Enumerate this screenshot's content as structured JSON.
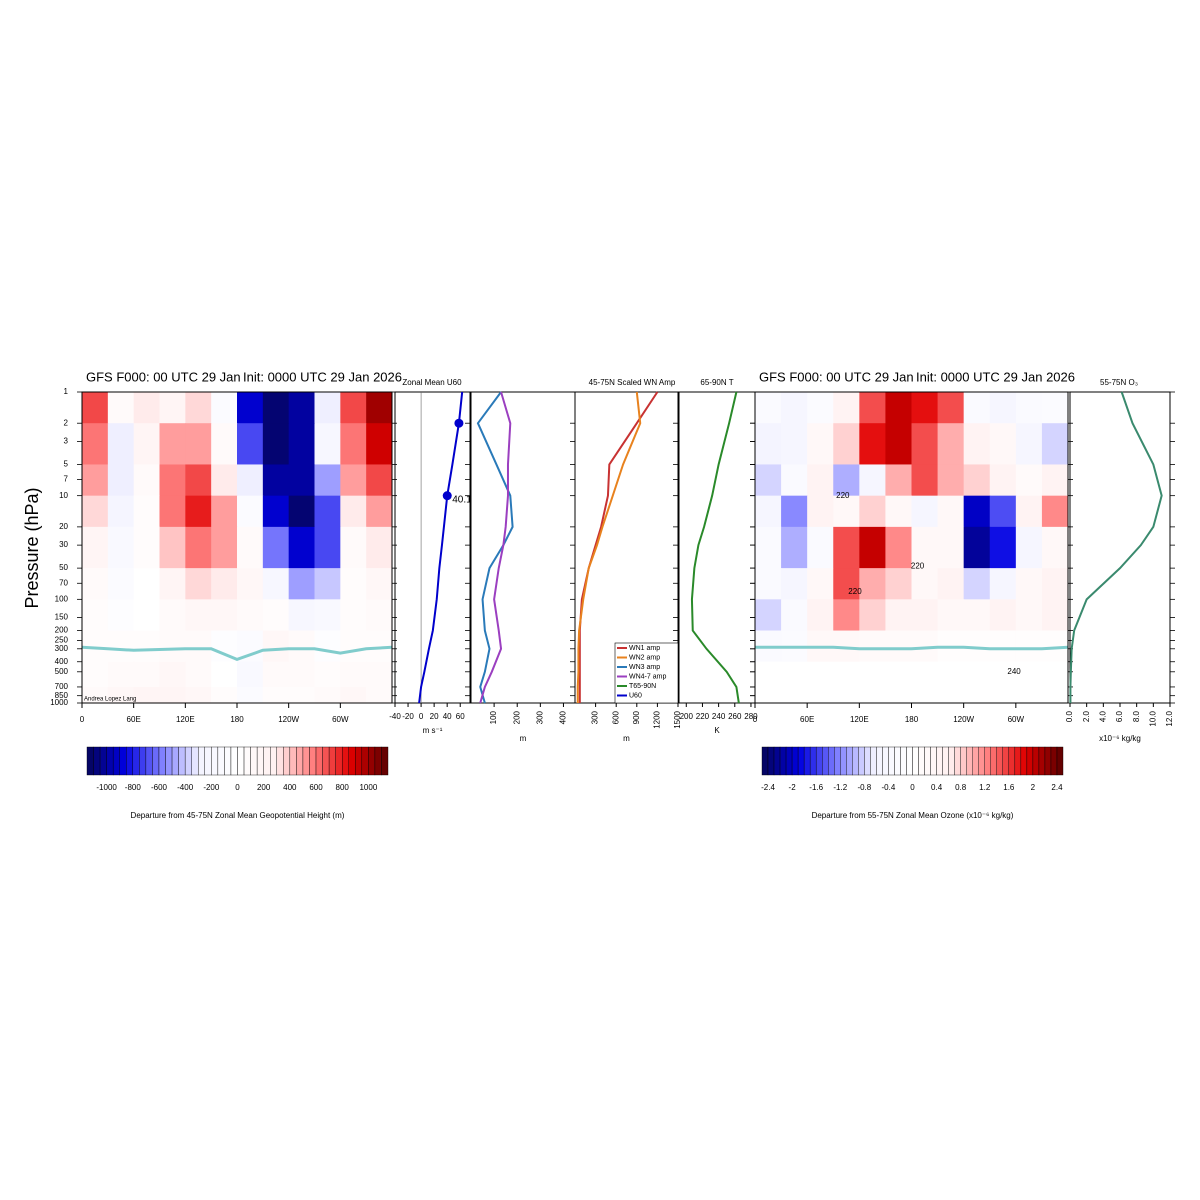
{
  "chart_data": [
    {
      "type": "heatmap",
      "title": "GFS F000: 00 UTC 29 Jan",
      "subtitle": "Init: 0000 UTC 29 Jan 2026",
      "ylabel": "Pressure (hPa)",
      "credit": "Andrea Lopez Lang",
      "x_bins": [
        0,
        30,
        60,
        90,
        120,
        150,
        180,
        210,
        240,
        270,
        300,
        330,
        360
      ],
      "y_bins": [
        1,
        2,
        5,
        10,
        20,
        50,
        100,
        200,
        400,
        700,
        1000
      ],
      "values": [
        [
          700,
          100,
          300,
          200,
          350,
          -100,
          -900,
          -1100,
          -1000,
          -300,
          700,
          1000
        ],
        [
          600,
          -300,
          200,
          500,
          500,
          100,
          -700,
          -1100,
          -1000,
          -200,
          600,
          900
        ],
        [
          500,
          -300,
          100,
          600,
          700,
          300,
          -300,
          -1000,
          -1000,
          -500,
          500,
          700
        ],
        [
          350,
          -250,
          50,
          600,
          800,
          500,
          -100,
          -900,
          -1100,
          -700,
          300,
          500
        ],
        [
          200,
          -150,
          50,
          400,
          600,
          500,
          100,
          -600,
          -900,
          -700,
          100,
          300
        ],
        [
          100,
          -100,
          0,
          200,
          350,
          300,
          150,
          -200,
          -500,
          -400,
          50,
          150
        ],
        [
          50,
          -50,
          0,
          100,
          150,
          150,
          100,
          50,
          -200,
          -150,
          50,
          100
        ],
        [
          50,
          50,
          50,
          100,
          100,
          -50,
          -100,
          150,
          100,
          -50,
          50,
          50
        ],
        [
          50,
          100,
          100,
          150,
          100,
          0,
          -150,
          100,
          100,
          50,
          100,
          100
        ],
        [
          100,
          150,
          200,
          200,
          150,
          50,
          -100,
          50,
          50,
          100,
          150,
          100
        ]
      ],
      "xlim": [
        0,
        360
      ],
      "ylim": [
        1,
        1000
      ],
      "ylog": true,
      "xticks": [
        0,
        {
          "value": 60,
          "label": "60E"
        },
        {
          "value": 120,
          "label": "120E"
        },
        180,
        {
          "value": 240,
          "label": "120W"
        },
        {
          "value": 300,
          "label": "60W"
        }
      ],
      "yticks": [
        1,
        2,
        3,
        5,
        7,
        10,
        20,
        30,
        50,
        70,
        100,
        150,
        200,
        250,
        300,
        400,
        500,
        700,
        850,
        1000
      ],
      "tropopause": {
        "x": [
          0,
          30,
          60,
          90,
          120,
          150,
          180,
          210,
          240,
          270,
          300,
          330,
          360
        ],
        "values": [
          290,
          300,
          310,
          305,
          300,
          300,
          380,
          310,
          300,
          300,
          330,
          300,
          290
        ],
        "color": "#80cccc"
      },
      "colorbar": {
        "label": "Departure from 45-75N Zonal Mean Geopotential Height (m)",
        "clim": [
          -1150,
          1150
        ],
        "step": 50,
        "ticks": [
          -1000,
          -800,
          -600,
          -400,
          -200,
          0,
          200,
          400,
          600,
          800,
          1000
        ],
        "colormap": [
          "#05055a",
          "#0000e0",
          "#8080ff",
          "#f4f4ff",
          "#ffffff",
          "#fff0f0",
          "#ff8080",
          "#e00000",
          "#5a0000"
        ]
      }
    },
    {
      "type": "line",
      "title": "Zonal Mean U60",
      "xlabel": "m s⁻¹",
      "xlim": [
        -40,
        75
      ],
      "xticks": [
        -40,
        -20,
        0,
        20,
        40,
        60
      ],
      "zero_line": true,
      "y": [
        1,
        2,
        5,
        10,
        20,
        30,
        50,
        100,
        200,
        300,
        500,
        700,
        1000
      ],
      "series": [
        {
          "name": "U60",
          "color": "#0000cc",
          "values": [
            63,
            58,
            48,
            40.1,
            35,
            32,
            28,
            24,
            18,
            12,
            5,
            0,
            -3
          ]
        }
      ],
      "markers": {
        "y": [
          2,
          10
        ],
        "values": [
          58,
          40.1
        ],
        "labeled": [
          false,
          true
        ]
      }
    },
    {
      "type": "line",
      "xlabel": "m",
      "xlim": [
        0,
        450
      ],
      "xticks": [
        100,
        200,
        300,
        400
      ],
      "rotate_xticks": true,
      "y": [
        1,
        2,
        5,
        10,
        20,
        30,
        50,
        100,
        200,
        300,
        500,
        700,
        1000
      ],
      "series": [
        {
          "name": "WN3 amp",
          "color": "#2a7ab9",
          "values": [
            130,
            30,
            110,
            170,
            180,
            140,
            80,
            50,
            60,
            80,
            60,
            40,
            60
          ]
        },
        {
          "name": "WN4-7 amp",
          "color": "#9b3fc0",
          "values": [
            130,
            170,
            160,
            160,
            150,
            140,
            120,
            100,
            120,
            130,
            90,
            60,
            40
          ]
        }
      ]
    },
    {
      "type": "line",
      "title": "45-75N Scaled WN Amp",
      "xlabel": "m",
      "xlim": [
        0,
        1500
      ],
      "xticks": [
        300,
        600,
        900,
        1200,
        1500
      ],
      "rotate_xticks": true,
      "legend": "lower right",
      "y": [
        1,
        2,
        5,
        10,
        20,
        30,
        50,
        100,
        200,
        300,
        500,
        700,
        1000
      ],
      "series": [
        {
          "name": "WN1 amp",
          "color": "#c83232",
          "values": [
            1200,
            900,
            500,
            480,
            380,
            300,
            200,
            100,
            70,
            70,
            70,
            70,
            70
          ]
        },
        {
          "name": "WN2 amp",
          "color": "#e8821e",
          "values": [
            900,
            950,
            700,
            550,
            400,
            320,
            200,
            120,
            60,
            50,
            50,
            40,
            40
          ]
        }
      ]
    },
    {
      "type": "line",
      "title": "65-90N T",
      "xlabel": "K",
      "xlim": [
        191,
        285
      ],
      "xticks": [
        200,
        220,
        240,
        260,
        280
      ],
      "y": [
        1,
        2,
        5,
        10,
        20,
        30,
        50,
        100,
        200,
        300,
        500,
        700,
        1000
      ],
      "series": [
        {
          "name": "T65-90N",
          "color": "#2a8a2a",
          "values": [
            262,
            253,
            240,
            232,
            222,
            215,
            210,
            207,
            208,
            225,
            250,
            262,
            265
          ]
        }
      ]
    },
    {
      "type": "heatmap",
      "title": "GFS F000: 00 UTC 29 Jan",
      "subtitle": "Init: 0000 UTC 29 Jan 2026",
      "x_bins": [
        0,
        30,
        60,
        90,
        120,
        150,
        180,
        210,
        240,
        270,
        300,
        330,
        360
      ],
      "y_bins": [
        1,
        2,
        5,
        10,
        20,
        50,
        100,
        200,
        400,
        700,
        1000
      ],
      "values": [
        [
          -0.3,
          -0.5,
          -0.2,
          0.5,
          1.5,
          2.0,
          1.8,
          1.5,
          -0.3,
          -0.5,
          -0.3,
          -0.2
        ],
        [
          -0.6,
          -0.5,
          0.3,
          0.8,
          1.8,
          2.0,
          1.5,
          1.0,
          0.5,
          0.3,
          -0.5,
          -0.8
        ],
        [
          -0.8,
          -0.3,
          0.5,
          -1.0,
          -0.5,
          1.0,
          1.5,
          1.0,
          0.8,
          0.5,
          0.2,
          0.5
        ],
        [
          -0.5,
          -1.2,
          0.5,
          0.3,
          0.8,
          0.3,
          -0.5,
          0.3,
          -2.0,
          -1.5,
          0.5,
          1.2
        ],
        [
          -0.3,
          -1.0,
          -0.3,
          1.5,
          2.0,
          1.2,
          0.3,
          0.3,
          -2.2,
          -1.8,
          -0.5,
          0.3
        ],
        [
          -0.3,
          -0.5,
          0.3,
          1.5,
          1.0,
          0.8,
          0.3,
          0.5,
          -0.8,
          -0.5,
          0.3,
          0.5
        ],
        [
          -0.8,
          -0.3,
          0.5,
          1.2,
          0.8,
          0.5,
          0.5,
          0.3,
          0.3,
          0.5,
          0.3,
          0.5
        ],
        [
          -0.3,
          -0.2,
          0.3,
          0.3,
          0.2,
          0.2,
          0.2,
          0.1,
          0.1,
          0.1,
          0.1,
          0.1
        ],
        [
          0,
          0,
          0,
          0,
          0,
          0,
          0,
          0,
          0,
          0,
          0,
          0
        ],
        [
          0,
          0,
          0,
          0,
          0,
          0,
          0,
          0,
          0,
          0,
          0,
          0
        ]
      ],
      "xlim": [
        0,
        360
      ],
      "ylim": [
        1,
        1000
      ],
      "ylog": true,
      "xticks": [
        0,
        {
          "value": 60,
          "label": "60E"
        },
        {
          "value": 120,
          "label": "120E"
        },
        180,
        {
          "value": 240,
          "label": "120W"
        },
        {
          "value": 300,
          "label": "60W"
        }
      ],
      "tropopause": {
        "x": [
          0,
          30,
          60,
          90,
          120,
          150,
          180,
          210,
          240,
          270,
          300,
          330,
          360
        ],
        "values": [
          290,
          290,
          290,
          290,
          300,
          300,
          300,
          290,
          290,
          300,
          300,
          300,
          290
        ],
        "color": "#80cccc"
      },
      "annotations": [
        {
          "text": "220",
          "x": 101,
          "y": 10
        },
        {
          "text": "220",
          "x": 187,
          "y": 48
        },
        {
          "text": "220",
          "x": 115,
          "y": 85
        },
        {
          "text": "240",
          "x": 298,
          "y": 500
        }
      ],
      "colorbar": {
        "label": "Departure from 55-75N Zonal Mean Ozone (x10⁻⁶ kg/kg)",
        "clim": [
          -2.5,
          2.5
        ],
        "step": 0.1,
        "ticks": [
          -2.4,
          -2,
          -1.6,
          -1.2,
          -0.8,
          -0.4,
          0,
          0.4,
          0.8,
          1.2,
          1.6,
          2,
          2.4
        ],
        "colormap": [
          "#05055a",
          "#0000e0",
          "#8080ff",
          "#f4f4ff",
          "#ffffff",
          "#fff0f0",
          "#ff8080",
          "#e00000",
          "#5a0000"
        ]
      }
    },
    {
      "type": "line",
      "title": "55-75N O₃",
      "xlabel": "x10⁻⁶ kg/kg",
      "xlim": [
        0,
        12
      ],
      "rotate_xticks": true,
      "xticks": [
        {
          "value": 0,
          "label": "0.0"
        },
        {
          "value": 2,
          "label": "2.0"
        },
        {
          "value": 4,
          "label": "4.0"
        },
        {
          "value": 6,
          "label": "6.0"
        },
        {
          "value": 8,
          "label": "8.0"
        },
        {
          "value": 10,
          "label": "10.0"
        },
        {
          "value": 12,
          "label": "12.0"
        }
      ],
      "y": [
        1,
        2,
        5,
        10,
        20,
        30,
        50,
        100,
        200,
        300,
        500,
        700,
        1000
      ],
      "series": [
        {
          "color": "#3a8a6e",
          "values": [
            6.2,
            7.5,
            10,
            11,
            10,
            8.5,
            6,
            2,
            0.5,
            0.2,
            0.1,
            0.05,
            0.05
          ]
        }
      ]
    }
  ]
}
